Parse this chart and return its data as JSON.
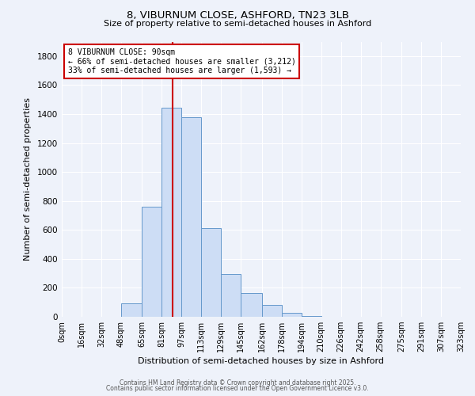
{
  "title_line1": "8, VIBURNUM CLOSE, ASHFORD, TN23 3LB",
  "title_line2": "Size of property relative to semi-detached houses in Ashford",
  "xlabel": "Distribution of semi-detached houses by size in Ashford",
  "ylabel": "Number of semi-detached properties",
  "bar_color": "#cdddf5",
  "bar_edge_color": "#6699cc",
  "background_color": "#eef2fa",
  "grid_color": "#ffffff",
  "bin_edges": [
    0,
    16,
    32,
    48,
    65,
    81,
    97,
    113,
    129,
    145,
    162,
    178,
    194,
    210,
    226,
    242,
    258,
    275,
    291,
    307,
    323
  ],
  "bin_labels": [
    "0sqm",
    "16sqm",
    "32sqm",
    "48sqm",
    "65sqm",
    "81sqm",
    "97sqm",
    "113sqm",
    "129sqm",
    "145sqm",
    "162sqm",
    "178sqm",
    "194sqm",
    "210sqm",
    "226sqm",
    "242sqm",
    "258sqm",
    "275sqm",
    "291sqm",
    "307sqm",
    "323sqm"
  ],
  "bar_heights": [
    2,
    0,
    0,
    95,
    760,
    1445,
    1380,
    610,
    295,
    165,
    80,
    25,
    5,
    0,
    0,
    0,
    0,
    0,
    0,
    0
  ],
  "ylim": [
    0,
    1900
  ],
  "yticks": [
    0,
    200,
    400,
    600,
    800,
    1000,
    1200,
    1400,
    1600,
    1800
  ],
  "property_size": 90,
  "annotation_title": "8 VIBURNUM CLOSE: 90sqm",
  "annotation_line1": "← 66% of semi-detached houses are smaller (3,212)",
  "annotation_line2": "33% of semi-detached houses are larger (1,593) →",
  "vline_color": "#cc0000",
  "annotation_box_color": "#ffffff",
  "annotation_box_edge": "#cc0000",
  "footer_line1": "Contains HM Land Registry data © Crown copyright and database right 2025.",
  "footer_line2": "Contains public sector information licensed under the Open Government Licence v3.0."
}
